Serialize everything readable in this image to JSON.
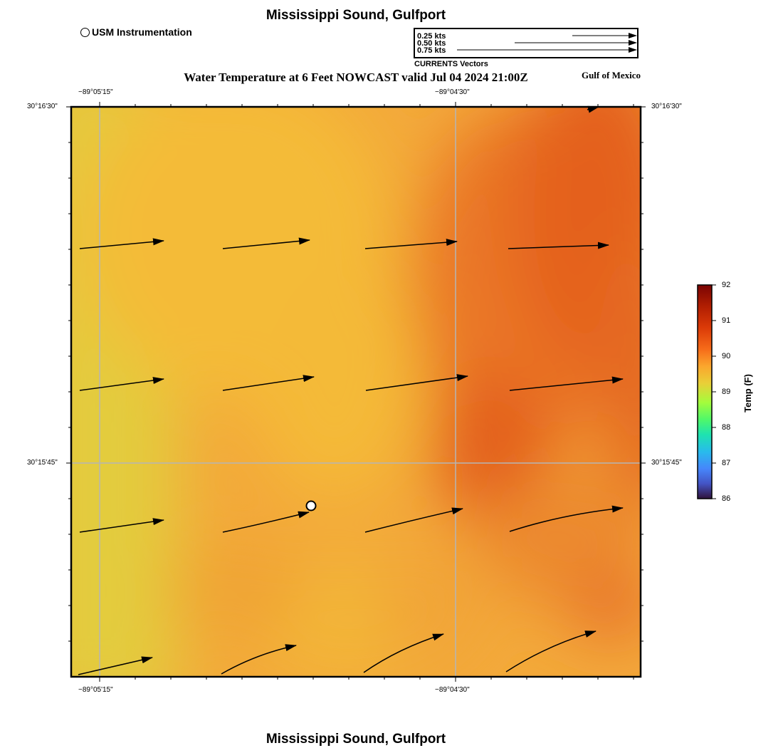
{
  "header": {
    "title": "Mississippi Sound, Gulfport",
    "subtitle": "Water Temperature at 6 Feet NOWCAST valid Jul 04 2024 21:00Z",
    "region": "Gulf of Mexico"
  },
  "legend": {
    "usm_label": "USM Instrumentation",
    "vectors": [
      {
        "label": "0.25 kts",
        "speed_kts": 0.25
      },
      {
        "label": "0.50 kts",
        "speed_kts": 0.5
      },
      {
        "label": "0.75 kts",
        "speed_kts": 0.75
      }
    ],
    "vectors_caption": "CURRENTS Vectors"
  },
  "map": {
    "lon_labels_top": [
      "−89°05'15\"",
      "−89°04'30\""
    ],
    "lon_labels_bottom": [
      "−89°05'15\"",
      "−89°04'30\""
    ],
    "lat_labels_left": [
      "30°16'30\"",
      "30°15'45\""
    ],
    "lat_labels_right": [
      "30°16'30\"",
      "30°15'45\""
    ],
    "gridlines": true,
    "station_marker": "usm-station"
  },
  "colorbar": {
    "title": "Temp (F)",
    "min": 86,
    "max": 92,
    "ticks": [
      "92",
      "91",
      "90",
      "89",
      "88",
      "87",
      "86"
    ],
    "colors": [
      "#7a0403",
      "#cb2a04",
      "#f66b19",
      "#f9ba38",
      "#cbe535",
      "#4ff86a",
      "#26d0b4",
      "#3f96fe",
      "#4454c4",
      "#30123b"
    ]
  },
  "footer": {
    "title": "Mississippi Sound, Gulfport"
  }
}
